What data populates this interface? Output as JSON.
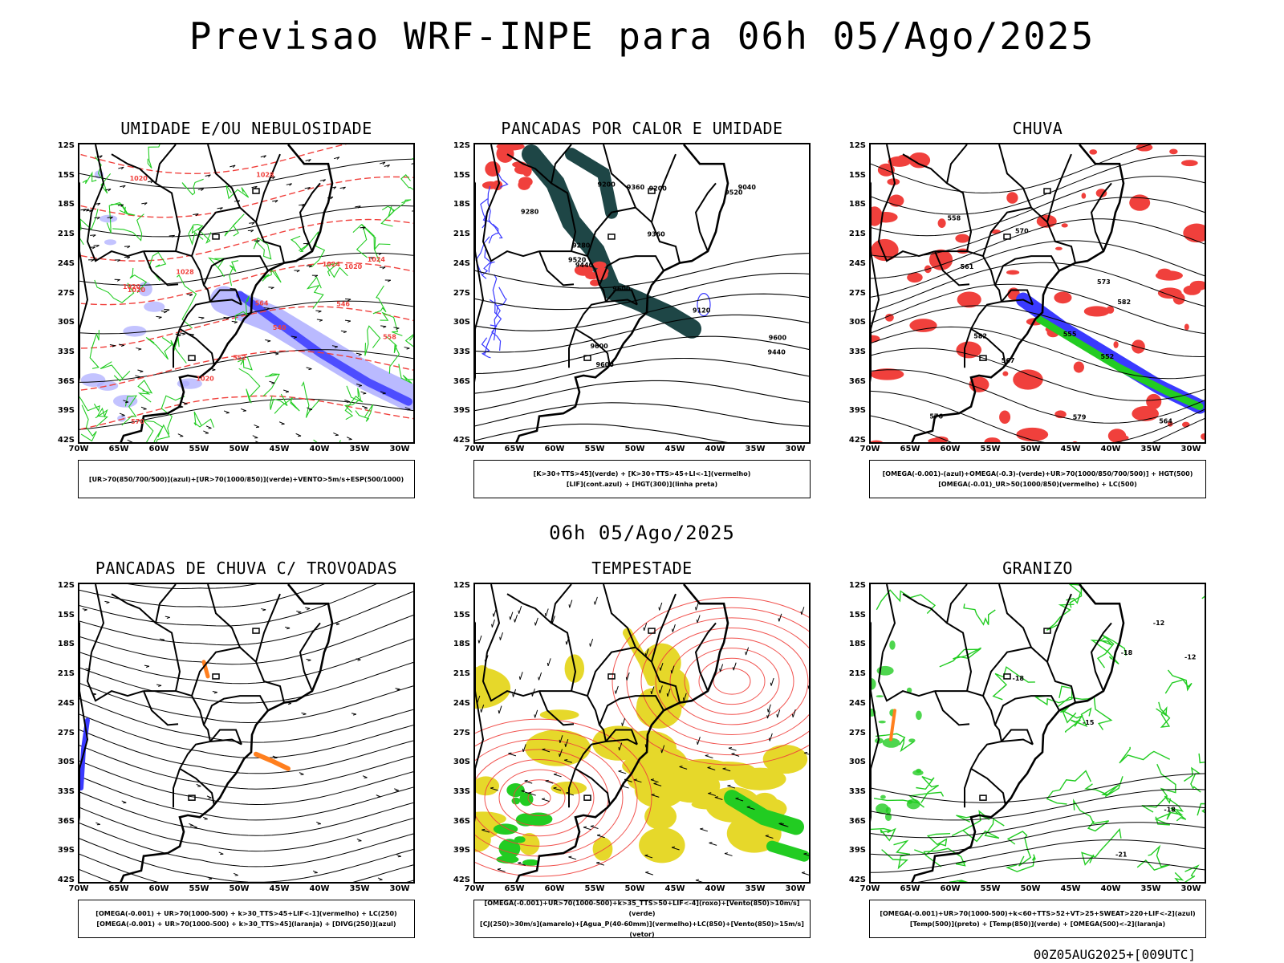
{
  "title": "Previsao WRF-INPE  para 06h 05/Ago/2025",
  "mid_date": "06h 05/Ago/2025",
  "footer": "00Z05AUG2025+[009UTC]",
  "lat_labels": [
    "12S",
    "15S",
    "18S",
    "21S",
    "24S",
    "27S",
    "30S",
    "33S",
    "36S",
    "39S",
    "42S"
  ],
  "lon_labels": [
    "70W",
    "65W",
    "60W",
    "55W",
    "50W",
    "45W",
    "40W",
    "35W",
    "30W"
  ],
  "panels": [
    {
      "title": "UMIDADE E/OU NEBULOSIDADE",
      "legend_lines": [
        "[UR>70(850/700/500)](azul)+[UR>70(1000/850)](verde)+VENTO>5m/s+ESP(500/1000)"
      ],
      "contour_labels": [
        "1020",
        "1020",
        "1020",
        "1020",
        "1020",
        "1024",
        "1028",
        "1028",
        "1024",
        "570",
        "564",
        "558",
        "552",
        "546",
        "540"
      ]
    },
    {
      "title": "PANCADAS POR CALOR E UMIDADE",
      "legend_lines": [
        "[K>30+TTS>45](verde) + [K>30+TTS>45+LI<-1](vermelho)",
        "[LIF](cont.azul) + [HGT(300)](linha preta)"
      ],
      "contour_labels": [
        "9600",
        "9600",
        "9600",
        "9600",
        "9520",
        "9520",
        "9440",
        "9440",
        "9360",
        "9360",
        "9280",
        "9280",
        "9200",
        "9200",
        "9120",
        "9040"
      ]
    },
    {
      "title": "CHUVA",
      "legend_lines": [
        "[OMEGA(-0.001)-(azul)+OMEGA(-0.3)-(verde)+UR>70(1000/850/700/500)] + HGT(500)",
        "[OMEGA(-0.01)_UR>50(1000/850)(vermelho) + LC(500)"
      ],
      "contour_labels": [
        "582",
        "582",
        "579",
        "576",
        "573",
        "570",
        "567",
        "564",
        "561",
        "558",
        "555",
        "552"
      ]
    },
    {
      "title": "PANCADAS DE CHUVA C/ TROVOADAS",
      "legend_lines": [
        "[OMEGA(-0.001) + UR>70(1000-500) + k>30_TTS>45+LIF<-1](vermelho) + LC(250)",
        "[OMEGA(-0.001) + UR>70(1000-500) + k>30_TTS>45](laranja) + [DIVG(250)](azul)"
      ],
      "contour_labels": []
    },
    {
      "title": "TEMPESTADE",
      "legend_lines": [
        "[OMEGA(-0.001)+UR>70(1000-500)+k>35_TTS>50+LIF<-4](roxo)+[Vento(850)>10m/s](verde)",
        "[CJ(250)>30m/s](amarelo)+[Agua_P(40-60mm)](vermelho)+LC(850)+[Vento(850)>15m/s](vetor)"
      ],
      "contour_labels": []
    },
    {
      "title": "GRANIZO",
      "legend_lines": [
        "[OMEGA(-0.001)+UR>70(1000-500)+k<60+TTS>52+VT>25+SWEAT>220+LIF<-2](azul)",
        "[Temp(500)](preto) + [Temp(850)](verde) + [OMEGA(500)<-2](laranja)"
      ],
      "contour_labels": [
        "-12",
        "-12",
        "-15",
        "-18",
        "-18",
        "-21",
        "-18"
      ]
    }
  ],
  "colors": {
    "blue": "#3a3aff",
    "lightblue": "#a9a9ff",
    "green": "#22cc22",
    "red": "#f0403c",
    "darkteal": "#1e4646",
    "orange": "#ff7f1e",
    "yellow": "#e6d82a"
  }
}
